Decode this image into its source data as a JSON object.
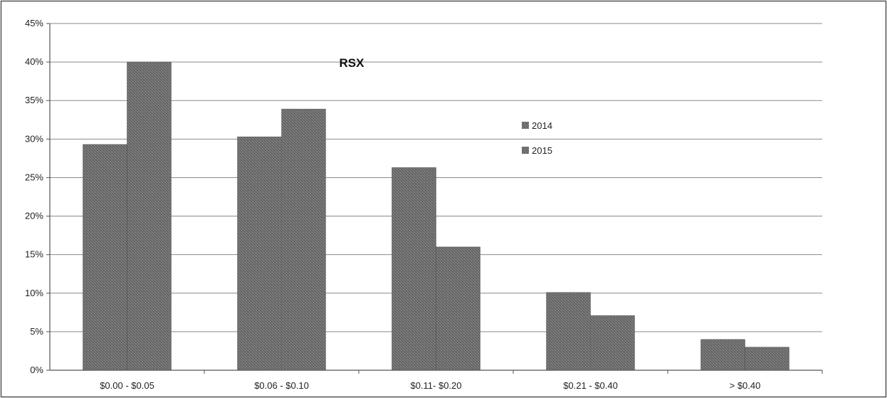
{
  "chart_data": {
    "type": "bar",
    "title": "RSX",
    "xlabel": "",
    "ylabel": "",
    "categories": [
      "$0.00 - $0.05",
      "$0.06 - $0.10",
      "$0.11- $0.20",
      "$0.21 - $0.40",
      "> $0.40"
    ],
    "series": [
      {
        "name": "2014",
        "values": [
          29.3,
          30.3,
          26.3,
          10.1,
          4.0
        ]
      },
      {
        "name": "2015",
        "values": [
          40.0,
          33.9,
          16.0,
          7.1,
          3.0
        ]
      }
    ],
    "ylim": [
      0,
      45
    ],
    "yticks": [
      "0%",
      "5%",
      "10%",
      "15%",
      "20%",
      "25%",
      "30%",
      "35%",
      "40%",
      "45%"
    ],
    "grid": true,
    "legend_position": "right-center",
    "bar_color": "#6f6f6f"
  }
}
